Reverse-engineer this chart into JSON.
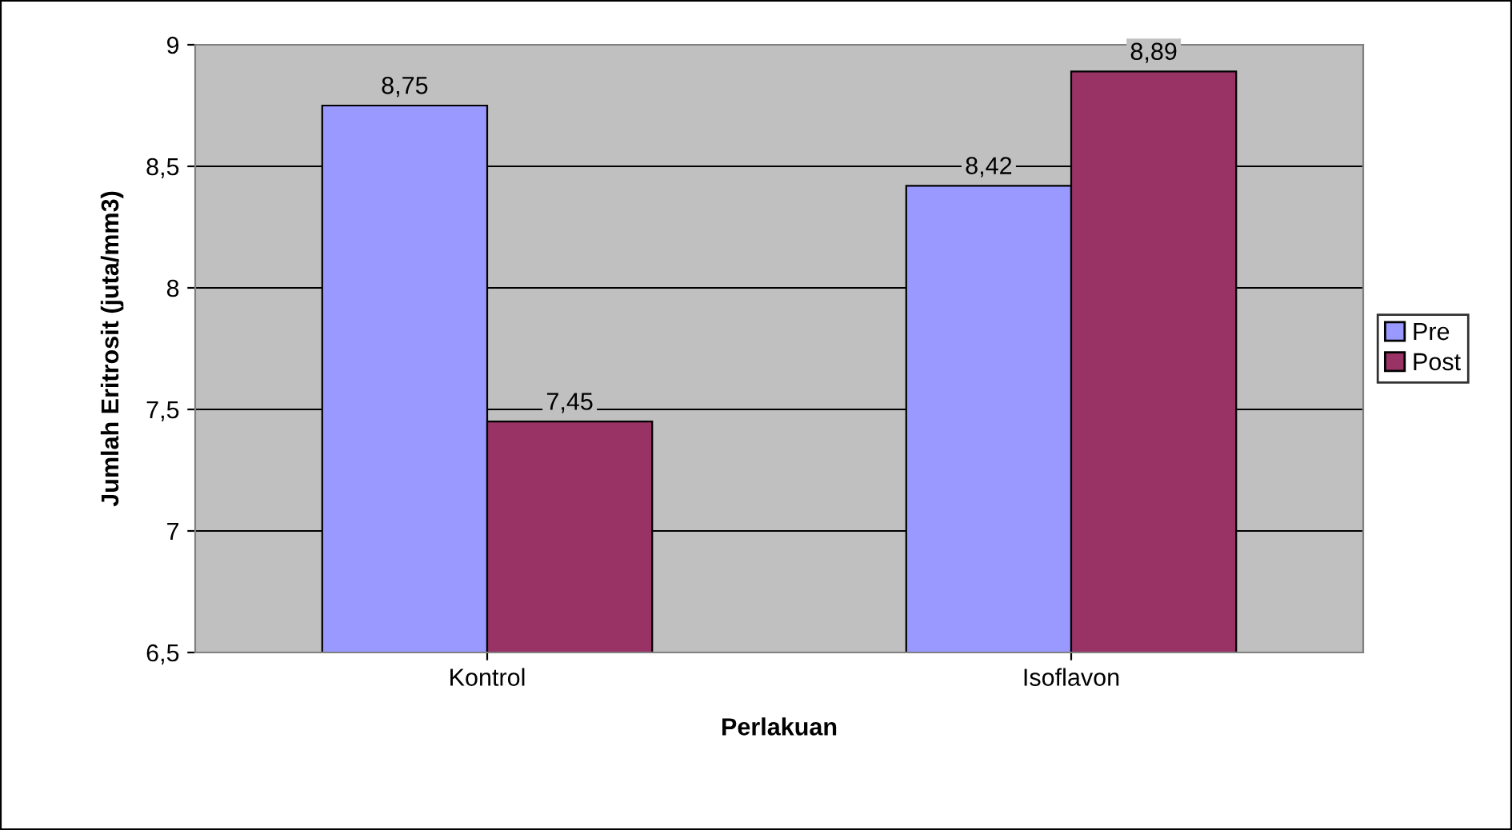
{
  "chart_data": {
    "type": "bar",
    "xlabel": "Perlakuan",
    "ylabel": "Jumlah Eritrosit (juta/mm3)",
    "categories": [
      "Kontrol",
      "Isoflavon"
    ],
    "series": [
      {
        "name": "Pre",
        "color": "#9999ff",
        "values": [
          8.75,
          8.42
        ],
        "value_labels": [
          "8,75",
          "8,42"
        ]
      },
      {
        "name": "Post",
        "color": "#993366",
        "values": [
          7.45,
          8.89
        ],
        "value_labels": [
          "7,45",
          "8,89"
        ]
      }
    ],
    "ylim": [
      6.5,
      9
    ],
    "yticks": [
      {
        "value": 6.5,
        "label": "6,5"
      },
      7,
      {
        "value": 7.5,
        "label": "7,5"
      },
      8,
      {
        "value": 8.5,
        "label": "8,5"
      },
      9
    ],
    "grid": "y",
    "legend": "right"
  }
}
